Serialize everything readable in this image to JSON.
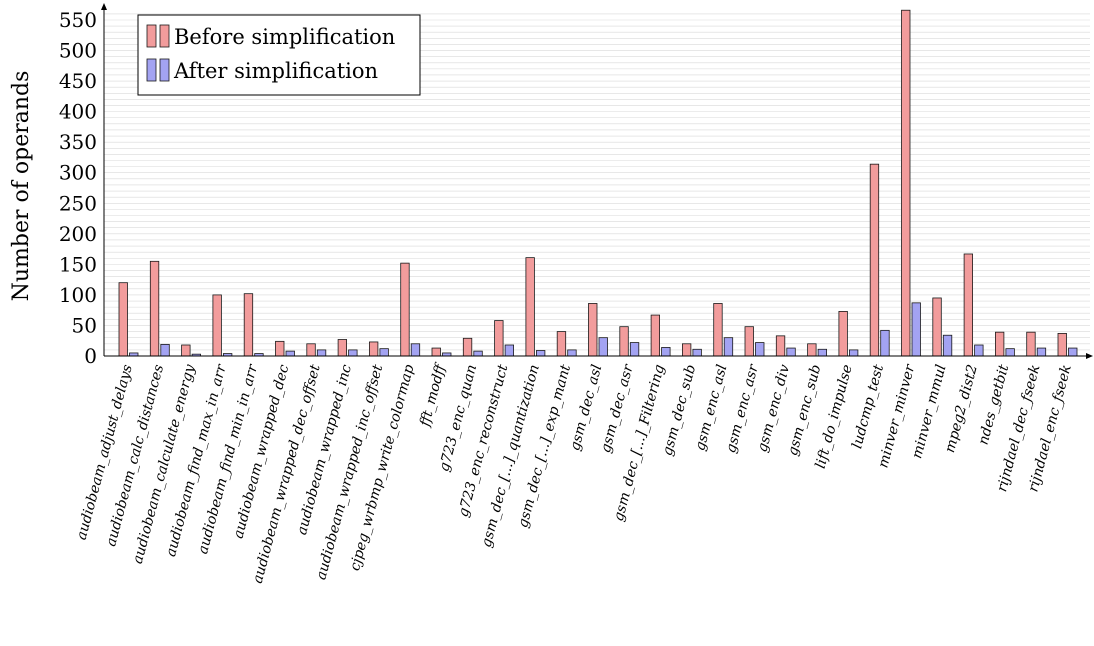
{
  "chart_data": {
    "type": "bar",
    "ylabel": "Number of operands",
    "xlabel": "",
    "title": "",
    "ylim": [
      0,
      565
    ],
    "yticks": [
      0,
      50,
      100,
      150,
      200,
      250,
      300,
      350,
      400,
      450,
      500,
      550
    ],
    "grid": true,
    "legend_position": "top-left",
    "categories": [
      "audiobeam_adjust_delays",
      "audiobeam_calc_distances",
      "audiobeam_calculate_energy",
      "audiobeam_find_max_in_arr",
      "audiobeam_find_min_in_arr",
      "audiobeam_wrapped_dec",
      "audiobeam_wrapped_dec_offset",
      "audiobeam_wrapped_inc",
      "audiobeam_wrapped_inc_offset",
      "cjpeg_wrbmp_write_colormap",
      "fft_modff",
      "g723_enc_quan",
      "g723_enc_reconstruct",
      "gsm_dec_[...]_quantization",
      "gsm_dec_[...]_exp_mant",
      "gsm_dec_asl",
      "gsm_dec_asr",
      "gsm_dec_[...]_Filtering",
      "gsm_dec_sub",
      "gsm_enc_asl",
      "gsm_enc_asr",
      "gsm_enc_div",
      "gsm_enc_sub",
      "lift_do_impulse",
      "ludcmp_test",
      "minver_minver",
      "minver_mmul",
      "mpeg2_dist2",
      "ndes_getbit",
      "rijndael_dec_fseek",
      "rijndael_enc_fseek"
    ],
    "series": [
      {
        "name": "Before simplification",
        "color": "#f29c9c",
        "values": [
          120,
          155,
          18,
          100,
          102,
          24,
          20,
          27,
          23,
          152,
          13,
          29,
          58,
          161,
          40,
          86,
          48,
          67,
          20,
          86,
          48,
          33,
          20,
          73,
          314,
          566,
          95,
          167,
          39,
          39,
          37
        ]
      },
      {
        "name": "After simplification",
        "color": "#a3a3f2",
        "values": [
          5,
          19,
          3,
          4,
          4,
          8,
          10,
          10,
          12,
          20,
          5,
          8,
          18,
          9,
          10,
          30,
          22,
          14,
          11,
          30,
          22,
          13,
          11,
          10,
          42,
          87,
          34,
          18,
          12,
          13,
          13
        ]
      }
    ]
  }
}
